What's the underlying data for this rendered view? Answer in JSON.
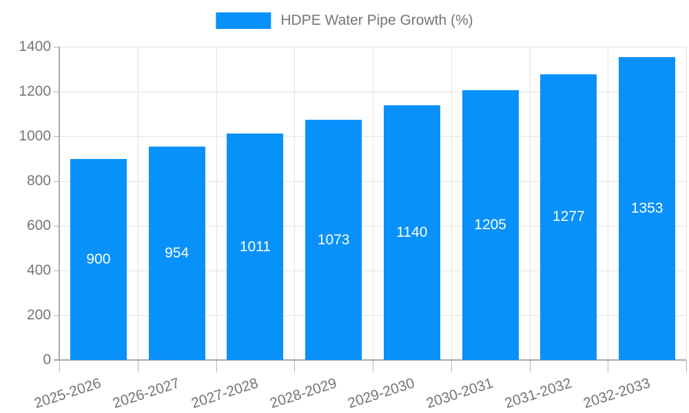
{
  "legend": {
    "label": "HDPE Water Pipe Growth (%)"
  },
  "colors": {
    "bar": "#0991fb",
    "text": "#757575",
    "grid": "#e3e3e3",
    "axis": "#a8a8a8",
    "tick": "#b3b3b3",
    "value_label": "#ffffff"
  },
  "chart_data": {
    "type": "bar",
    "title": "",
    "series_name": "HDPE Water Pipe Growth (%)",
    "categories": [
      "2025-2026",
      "2026-2027",
      "2027-2028",
      "2028-2029",
      "2029-2030",
      "2030-2031",
      "2031-2032",
      "2032-2033"
    ],
    "values": [
      900,
      954,
      1011,
      1073,
      1140,
      1205,
      1277,
      1353
    ],
    "xlabel": "",
    "ylabel": "",
    "ylim": [
      0,
      1400
    ],
    "yticks": [
      0,
      200,
      400,
      600,
      800,
      1000,
      1200,
      1400
    ],
    "grid": true,
    "legend_position": "top-center",
    "value_labels": "inside-center",
    "x_label_rotation_deg": -18
  }
}
